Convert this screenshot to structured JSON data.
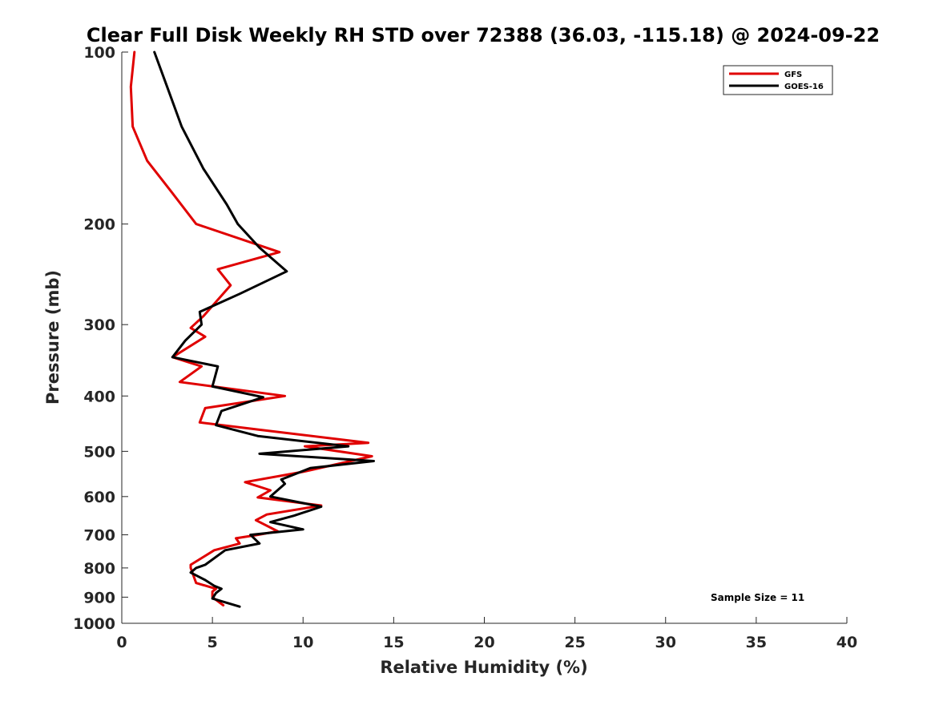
{
  "chart_data": {
    "type": "line",
    "title": "Clear Full Disk Weekly RH STD over 72388 (36.03, -115.18) @ 2024-09-22",
    "xlabel": "Relative Humidity (%)",
    "ylabel": "Pressure (mb)",
    "xlim": [
      0,
      40
    ],
    "ylim": [
      100,
      1000
    ],
    "yscale": "log",
    "y_reversed": true,
    "x_ticks": [
      0,
      5,
      10,
      15,
      20,
      25,
      30,
      35,
      40
    ],
    "x_tick_labels": [
      "0",
      "5",
      "10",
      "15",
      "20",
      "25",
      "30",
      "35",
      "40"
    ],
    "y_ticks": [
      100,
      200,
      300,
      400,
      500,
      600,
      700,
      800,
      900,
      1000
    ],
    "y_tick_labels": [
      "100",
      "200",
      "300",
      "400",
      "500",
      "600",
      "700",
      "800",
      "900",
      "1000"
    ],
    "grid": false,
    "legend_position": "top-right",
    "annotation": "Sample Size = 11",
    "series": [
      {
        "name": "GFS",
        "color": "#e00000",
        "x": [
          0.7,
          0.5,
          0.6,
          1.4,
          2.7,
          4.1,
          8.7,
          5.3,
          6.0,
          4.5,
          3.8,
          4.6,
          2.8,
          4.4,
          3.2,
          9.0,
          4.6,
          4.3,
          8.0,
          13.6,
          10.1,
          13.8,
          10.0,
          6.8,
          8.2,
          7.5,
          11.0,
          8.0,
          7.4,
          8.6,
          7.5,
          6.3,
          6.5,
          5.1,
          3.8,
          3.8,
          4.1,
          5.2,
          5.0,
          5.0,
          5.6
        ],
        "y": [
          100,
          115,
          135,
          155,
          175,
          200,
          224,
          240,
          256,
          290,
          304,
          315,
          342,
          355,
          378,
          400,
          420,
          445,
          460,
          483,
          490,
          510,
          543,
          566,
          585,
          602,
          622,
          645,
          660,
          690,
          700,
          710,
          725,
          745,
          790,
          800,
          850,
          870,
          880,
          900,
          930
        ]
      },
      {
        "name": "GOES-16",
        "color": "#000000",
        "x": [
          1.8,
          2.5,
          3.3,
          4.5,
          5.8,
          6.4,
          7.6,
          9.1,
          6.5,
          4.3,
          4.4,
          3.5,
          2.8,
          5.3,
          5.0,
          7.8,
          5.5,
          5.2,
          7.5,
          12.5,
          7.6,
          13.9,
          10.4,
          8.8,
          9.0,
          8.2,
          11.0,
          9.5,
          8.2,
          10.0,
          7.1,
          7.6,
          5.7,
          4.6,
          4.1,
          3.8,
          4.6,
          5.1,
          5.5,
          5.2,
          5.0,
          6.5
        ],
        "y": [
          100,
          115,
          135,
          160,
          185,
          200,
          220,
          242,
          265,
          285,
          300,
          320,
          342,
          355,
          385,
          402,
          425,
          450,
          470,
          490,
          505,
          520,
          535,
          560,
          570,
          600,
          625,
          648,
          665,
          685,
          700,
          725,
          745,
          790,
          800,
          815,
          840,
          860,
          870,
          885,
          905,
          935
        ]
      }
    ]
  }
}
